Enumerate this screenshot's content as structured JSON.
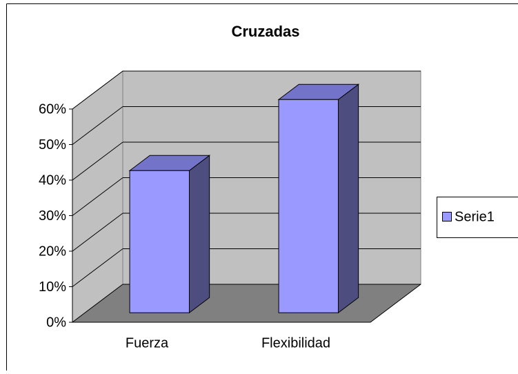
{
  "chart_data": {
    "type": "bar3d",
    "title": "Cruzadas",
    "categories": [
      "Fuerza",
      "Flexibilidad"
    ],
    "series": [
      {
        "name": "Serie1",
        "color": "#9999ff",
        "values": [
          40,
          60
        ]
      }
    ],
    "ylim": [
      0,
      60
    ],
    "yticks": [
      {
        "value": 0,
        "label": "0%"
      },
      {
        "value": 10,
        "label": "10%"
      },
      {
        "value": 20,
        "label": "20%"
      },
      {
        "value": 30,
        "label": "30%"
      },
      {
        "value": 40,
        "label": "40%"
      },
      {
        "value": 50,
        "label": "50%"
      },
      {
        "value": 60,
        "label": "60%"
      }
    ],
    "grid": true,
    "legend": "right"
  }
}
